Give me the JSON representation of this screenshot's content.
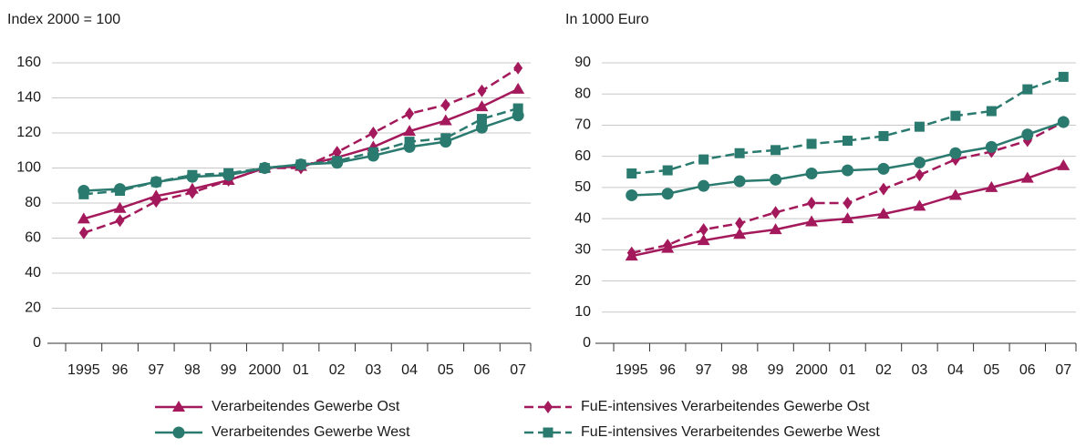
{
  "chart_data": [
    {
      "type": "line",
      "title": "Index 2000 = 100",
      "categories": [
        "1995",
        "96",
        "97",
        "98",
        "99",
        "2000",
        "01",
        "02",
        "03",
        "04",
        "05",
        "06",
        "07"
      ],
      "ylim": [
        0,
        160
      ],
      "yticks": [
        0,
        20,
        40,
        60,
        80,
        100,
        120,
        140,
        160
      ],
      "grid": true,
      "series": [
        {
          "name": "Verarbeitendes Gewerbe Ost",
          "color": "#a3195b",
          "marker": "triangle",
          "line_style": "solid",
          "values": [
            71,
            77,
            84,
            88,
            93,
            100,
            101,
            106,
            112,
            121,
            127,
            135,
            145
          ]
        },
        {
          "name": "FuE-intensives Verarbeitendes Gewerbe Ost",
          "color": "#a3195b",
          "marker": "diamond",
          "line_style": "dashed",
          "values": [
            63,
            70,
            81,
            86,
            93,
            100,
            100,
            109,
            120,
            131,
            136,
            144,
            157
          ]
        },
        {
          "name": "Verarbeitendes Gewerbe West",
          "color": "#2a7a6f",
          "marker": "circle",
          "line_style": "solid",
          "values": [
            87,
            88,
            92,
            95,
            96,
            100,
            102,
            103,
            107,
            112,
            115,
            123,
            130
          ]
        },
        {
          "name": "FuE-intensives Verarbeitendes Gewerbe West",
          "color": "#2a7a6f",
          "marker": "square",
          "line_style": "dashed",
          "values": [
            85,
            87,
            92,
            96,
            97,
            100,
            102,
            104,
            109,
            115,
            117,
            128,
            134
          ]
        }
      ]
    },
    {
      "type": "line",
      "title": "In 1000 Euro",
      "categories": [
        "1995",
        "96",
        "97",
        "98",
        "99",
        "2000",
        "01",
        "02",
        "03",
        "04",
        "05",
        "06",
        "07"
      ],
      "ylim": [
        0,
        90
      ],
      "yticks": [
        0,
        10,
        20,
        30,
        40,
        50,
        60,
        70,
        80,
        90
      ],
      "grid": true,
      "series": [
        {
          "name": "Verarbeitendes Gewerbe Ost",
          "color": "#a3195b",
          "marker": "triangle",
          "line_style": "solid",
          "values": [
            28,
            30.5,
            33,
            35,
            36.5,
            39,
            40,
            41.5,
            44,
            47.5,
            50,
            53,
            57
          ]
        },
        {
          "name": "FuE-intensives Verarbeitendes Gewerbe Ost",
          "color": "#a3195b",
          "marker": "diamond",
          "line_style": "dashed",
          "values": [
            29,
            31.5,
            36.5,
            38.5,
            42,
            45,
            45,
            49.5,
            54,
            59,
            61.5,
            65,
            71
          ]
        },
        {
          "name": "Verarbeitendes Gewerbe West",
          "color": "#2a7a6f",
          "marker": "circle",
          "line_style": "solid",
          "values": [
            47.5,
            48,
            50.5,
            52,
            52.5,
            54.5,
            55.5,
            56,
            58,
            61,
            63,
            67,
            71
          ]
        },
        {
          "name": "FuE-intensives Verarbeitendes Gewerbe West",
          "color": "#2a7a6f",
          "marker": "square",
          "line_style": "dashed",
          "values": [
            54.5,
            55.5,
            59,
            61,
            62,
            64,
            65,
            66.5,
            69.5,
            73,
            74.5,
            81.5,
            85.5
          ]
        }
      ]
    }
  ]
}
